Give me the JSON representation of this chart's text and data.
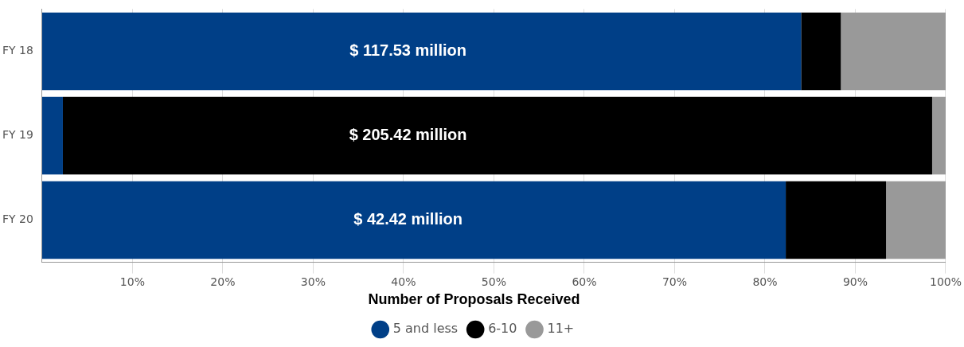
{
  "chart_data": {
    "type": "bar",
    "orientation": "horizontal",
    "stacked": true,
    "categories": [
      "FY 18",
      "FY 19",
      "FY 20"
    ],
    "series": [
      {
        "name": "5 and less",
        "color": "#003f87",
        "values": [
          84.0,
          2.3,
          82.3
        ]
      },
      {
        "name": "6-10",
        "color": "#000000",
        "values": [
          4.4,
          96.2,
          11.1
        ]
      },
      {
        "name": "11+",
        "color": "#999999",
        "values": [
          11.6,
          1.5,
          6.6
        ]
      }
    ],
    "xlim": [
      0,
      100
    ],
    "xticks": [
      {
        "value": 10,
        "label": "10%"
      },
      {
        "value": 20,
        "label": "20%"
      },
      {
        "value": 30,
        "label": "30%"
      },
      {
        "value": 40,
        "label": "40%"
      },
      {
        "value": 50,
        "label": "50%"
      },
      {
        "value": 60,
        "label": "60%"
      },
      {
        "value": 70,
        "label": "70%"
      },
      {
        "value": 80,
        "label": "80%"
      },
      {
        "value": 90,
        "label": "90%"
      },
      {
        "value": 100,
        "label": "100%"
      }
    ],
    "grid": "x",
    "legend": "bottom",
    "legend_title": "Number of Proposals Received",
    "annotations": [
      "$ 117.53 million",
      "$ 205.42 million",
      "$ 42.42 million"
    ]
  }
}
